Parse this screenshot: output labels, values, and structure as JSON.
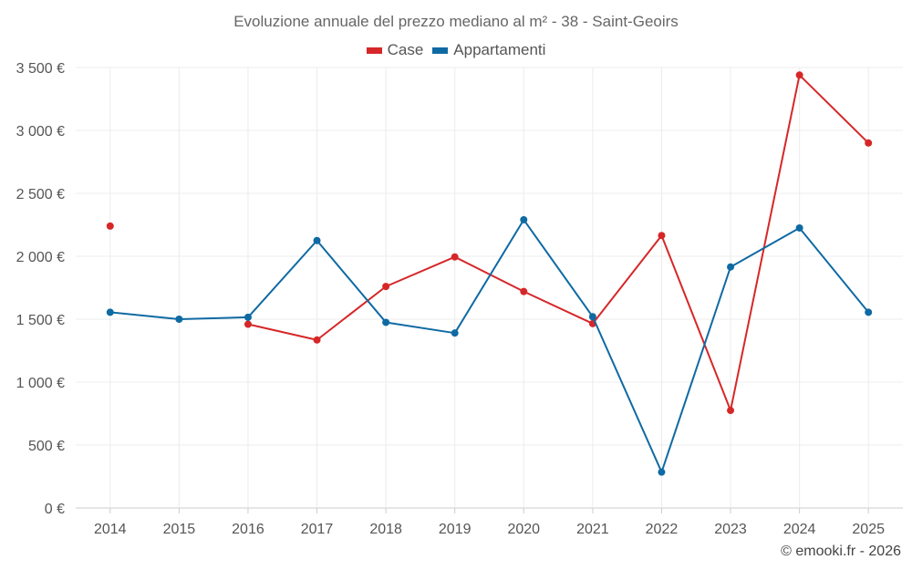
{
  "chart_data": {
    "type": "line",
    "title": "Evoluzione annuale del prezzo mediano al m² - 38 - Saint-Geoirs",
    "categories": [
      "2014",
      "2015",
      "2016",
      "2017",
      "2018",
      "2019",
      "2020",
      "2021",
      "2022",
      "2023",
      "2024",
      "2025"
    ],
    "ylim": [
      0,
      3500
    ],
    "yticks": [
      0,
      500,
      1000,
      1500,
      2000,
      2500,
      3000,
      3500
    ],
    "ytick_labels": [
      "0 €",
      "500 €",
      "1 000 €",
      "1 500 €",
      "2 000 €",
      "2 500 €",
      "3 000 €",
      "3 500 €"
    ],
    "grid": true,
    "legend_position": "top-center",
    "series": [
      {
        "name": "Case",
        "color": "#d62728",
        "values": [
          2240,
          null,
          1460,
          1335,
          1760,
          1995,
          1720,
          1465,
          2165,
          775,
          3440,
          2900
        ]
      },
      {
        "name": "Appartamenti",
        "color": "#0f6aa3",
        "values": [
          1555,
          1500,
          1515,
          2125,
          1475,
          1390,
          2290,
          1520,
          285,
          1915,
          2225,
          1555
        ]
      }
    ]
  },
  "footer": {
    "copyright": "© emooki.fr - 2026"
  }
}
